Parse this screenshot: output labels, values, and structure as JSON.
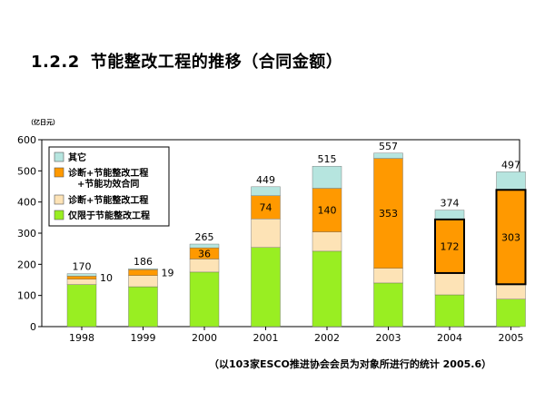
{
  "page": {
    "section_number": "1.2.2",
    "title": "节能整改工程的推移（合同金额）",
    "source_note": "（以103家ESCO推进协会会员为对象所进行的统计  2005.6）"
  },
  "colors": {
    "other": "#b6e5df",
    "diag_plus_guarantee": "#ff9900",
    "diag_plus_retrofit": "#fde3b6",
    "retrofit_only": "#99ee22",
    "highlight_border": "#000000",
    "axis": "#000000"
  },
  "chart_data": {
    "type": "bar",
    "stacked": true,
    "title": "",
    "ylabel": "（亿日元）",
    "xlabel": "",
    "categories": [
      "1998",
      "1999",
      "2000",
      "2001",
      "2002",
      "2003",
      "2004",
      "2005"
    ],
    "ylim": [
      0,
      600
    ],
    "yticks": [
      0,
      100,
      200,
      300,
      400,
      500,
      600
    ],
    "grid": false,
    "legend_position": "top-left",
    "series": [
      {
        "name": "仅限于节能整改工程",
        "color_key": "retrofit_only",
        "values": [
          135,
          128,
          175,
          254,
          242,
          140,
          102,
          88
        ]
      },
      {
        "name": "诊断+节能整改工程",
        "color_key": "diag_plus_retrofit",
        "values": [
          17,
          36,
          42,
          92,
          62,
          47,
          70,
          48
        ]
      },
      {
        "name": "诊断+节能整改工程\n+节能功效合同",
        "color_key": "diag_plus_guarantee",
        "values": [
          10,
          19,
          36,
          74,
          140,
          353,
          172,
          303
        ]
      },
      {
        "name": "其它",
        "color_key": "other",
        "values": [
          8,
          3,
          12,
          29,
          71,
          17,
          30,
          58
        ]
      }
    ],
    "totals": [
      170,
      186,
      265,
      449,
      515,
      557,
      374,
      497
    ],
    "segment_labels": [
      {
        "category": "1998",
        "series": 2,
        "text": "10",
        "placement": "outside-right"
      },
      {
        "category": "1999",
        "series": 2,
        "text": "19",
        "placement": "outside-right"
      },
      {
        "category": "2000",
        "series": 2,
        "text": "36",
        "placement": "inside"
      },
      {
        "category": "2001",
        "series": 2,
        "text": "74",
        "placement": "inside"
      },
      {
        "category": "2002",
        "series": 2,
        "text": "140",
        "placement": "inside"
      },
      {
        "category": "2003",
        "series": 2,
        "text": "353",
        "placement": "inside"
      },
      {
        "category": "2004",
        "series": 2,
        "text": "172",
        "placement": "inside"
      },
      {
        "category": "2005",
        "series": 2,
        "text": "303",
        "placement": "inside"
      }
    ],
    "highlighted_series_index": 2,
    "highlighted_categories": [
      "2004",
      "2005"
    ],
    "legend_order": [
      3,
      2,
      1,
      0
    ]
  }
}
